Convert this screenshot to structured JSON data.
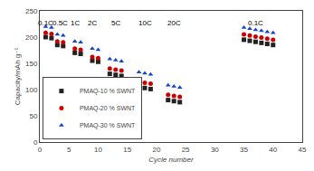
{
  "chart_data": {
    "type": "scatter",
    "xlabel": "Cycle number",
    "ylabel": "Capacity/mAh g⁻¹",
    "xlim": [
      0,
      45
    ],
    "ylim": [
      0,
      250
    ],
    "xticks": [
      0,
      5,
      10,
      15,
      20,
      25,
      30,
      35,
      40,
      45
    ],
    "yticks": [
      0,
      50,
      100,
      150,
      200,
      250
    ],
    "grid": false,
    "legend": "lower left",
    "annotations": [
      {
        "text": "0.1C",
        "x": 1,
        "y": 238
      },
      {
        "text": "0.5C",
        "x": 3.5,
        "y": 238
      },
      {
        "text": "1C",
        "x": 6,
        "y": 238
      },
      {
        "text": "2C",
        "x": 9,
        "y": 238
      },
      {
        "text": "5C",
        "x": 13,
        "y": 238
      },
      {
        "text": "10C",
        "x": 18,
        "y": 238
      },
      {
        "text": "20C",
        "x": 23,
        "y": 238
      },
      {
        "text": "0.1C",
        "x": 37,
        "y": 238
      }
    ],
    "series": [
      {
        "name": "PMAQ-10 % SWNT",
        "color": "#222222",
        "marker": "square",
        "x": [
          1,
          2,
          3,
          4,
          6,
          7,
          9,
          10,
          12,
          13,
          14,
          17,
          18,
          19,
          22,
          23,
          24,
          35,
          36,
          37,
          38,
          39,
          40
        ],
        "values": [
          200,
          198,
          185,
          183,
          170,
          168,
          155,
          153,
          130,
          128,
          126,
          105,
          103,
          101,
          80,
          78,
          76,
          195,
          193,
          191,
          189,
          187,
          185
        ]
      },
      {
        "name": "PMAQ-20 % SWNT",
        "color": "#cc0000",
        "marker": "circle",
        "x": [
          1,
          2,
          3,
          4,
          6,
          7,
          9,
          10,
          12,
          13,
          14,
          17,
          18,
          19,
          22,
          23,
          24,
          35,
          36,
          37,
          38,
          39,
          40
        ],
        "values": [
          208,
          206,
          192,
          190,
          178,
          176,
          162,
          160,
          140,
          138,
          136,
          115,
          113,
          111,
          90,
          88,
          86,
          205,
          203,
          201,
          199,
          197,
          195
        ]
      },
      {
        "name": "PMAQ-30 % SWNT",
        "color": "#1144cc",
        "marker": "triangle-up",
        "x": [
          1,
          2,
          3,
          4,
          6,
          7,
          9,
          10,
          12,
          13,
          14,
          17,
          18,
          19,
          22,
          23,
          24,
          35,
          36,
          37,
          38,
          39,
          40
        ],
        "values": [
          220,
          218,
          205,
          203,
          192,
          190,
          178,
          176,
          158,
          156,
          154,
          133,
          131,
          129,
          108,
          106,
          104,
          218,
          216,
          214,
          212,
          210,
          208
        ]
      }
    ]
  }
}
